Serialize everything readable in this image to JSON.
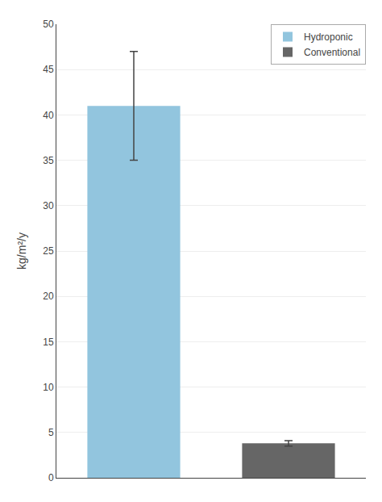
{
  "chart_data": {
    "type": "bar",
    "categories": [
      "Hydroponic",
      "Conventional"
    ],
    "values": [
      41.0,
      3.8
    ],
    "errors_up": [
      6.0,
      0.3
    ],
    "errors_down": [
      6.0,
      0.3
    ],
    "colors": [
      "#92C5DE",
      "#666666"
    ],
    "ylabel": "kg/m²/y",
    "ylim": [
      0,
      50
    ],
    "yticks": [
      0,
      5,
      10,
      15,
      20,
      25,
      30,
      35,
      40,
      45,
      50
    ],
    "grid": true,
    "legend": "upper right",
    "tick_labels": "y"
  }
}
